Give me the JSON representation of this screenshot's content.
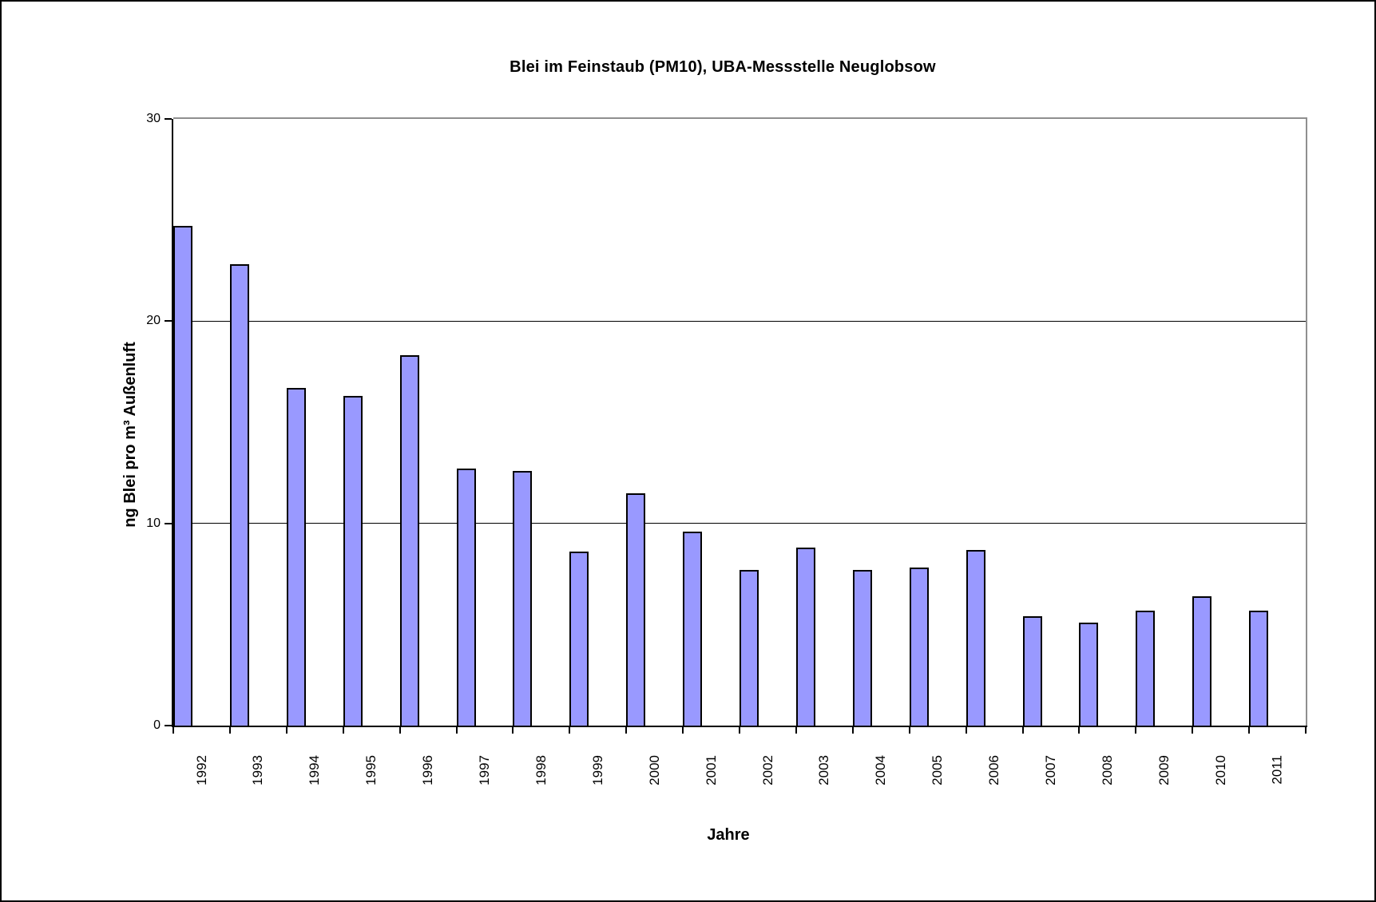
{
  "chart_data": {
    "type": "bar",
    "title": "Blei im Feinstaub (PM10), UBA-Messstelle Neuglobsow",
    "xlabel": "Jahre",
    "ylabel": "ng Blei pro m³ Außenluft",
    "categories": [
      "1992",
      "1993",
      "1994",
      "1995",
      "1996",
      "1997",
      "1998",
      "1999",
      "2000",
      "2001",
      "2002",
      "2003",
      "2004",
      "2005",
      "2006",
      "2007",
      "2008",
      "2009",
      "2010",
      "2011"
    ],
    "values": [
      24.7,
      22.8,
      16.7,
      16.3,
      18.3,
      12.7,
      12.6,
      8.6,
      11.5,
      9.6,
      7.7,
      8.8,
      7.7,
      7.8,
      8.7,
      5.4,
      5.1,
      5.7,
      6.4,
      5.7
    ],
    "ylim": [
      0,
      30
    ],
    "yticks": [
      "0",
      "10",
      "20",
      "30"
    ],
    "gridlines_at": [
      10,
      20
    ],
    "grid": "horizontal",
    "legend": "none",
    "bar_color": "#9999FF",
    "bar_border_color": "#000000",
    "plot_border_color": "#8F8F8F",
    "axis_color": "#000000",
    "background_color": "#FFFFFF"
  }
}
